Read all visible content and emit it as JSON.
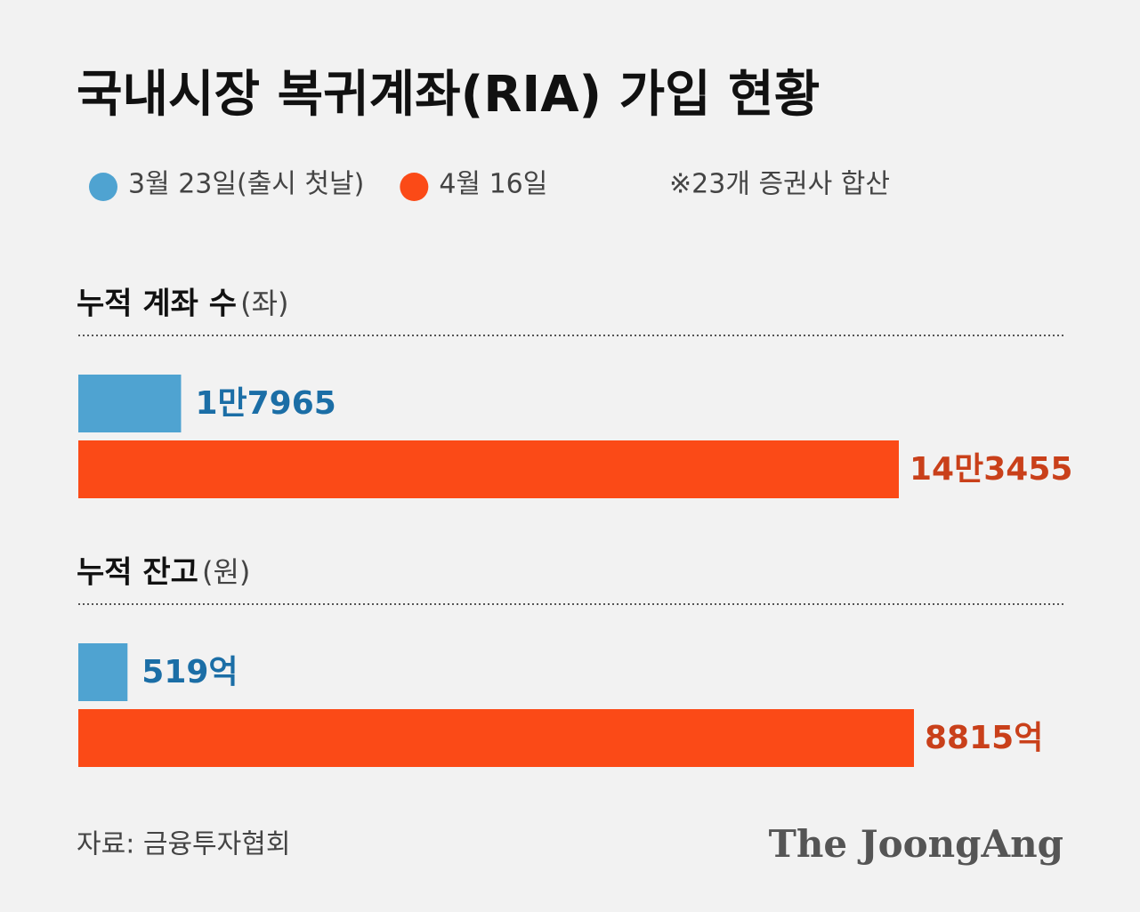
{
  "title": "국내시장 복귀계좌(RIA) 가입 현황",
  "legend": [
    {
      "name": "3월 23일(출시 첫날)",
      "color": "#4fa3d1"
    },
    {
      "name": "4월 16일",
      "color": "#fb4a17"
    }
  ],
  "note": "※23개 증권사 합산",
  "source": "자료: 금융투자협회",
  "logo": "The JoongAng",
  "chart_data": [
    {
      "type": "hbar",
      "title": "누적 계좌 수",
      "unit": "(좌)",
      "values": [
        17965,
        143455
      ],
      "value_labels": [
        "1만7965",
        "14만3455"
      ],
      "label_colors": [
        "#1b6ea6",
        "#c9401a"
      ]
    },
    {
      "type": "hbar",
      "title": "누적 잔고",
      "unit": "(원)",
      "values": [
        519,
        8815
      ],
      "value_labels": [
        "519억",
        "8815억"
      ],
      "label_colors": [
        "#1b6ea6",
        "#c9401a"
      ]
    }
  ]
}
